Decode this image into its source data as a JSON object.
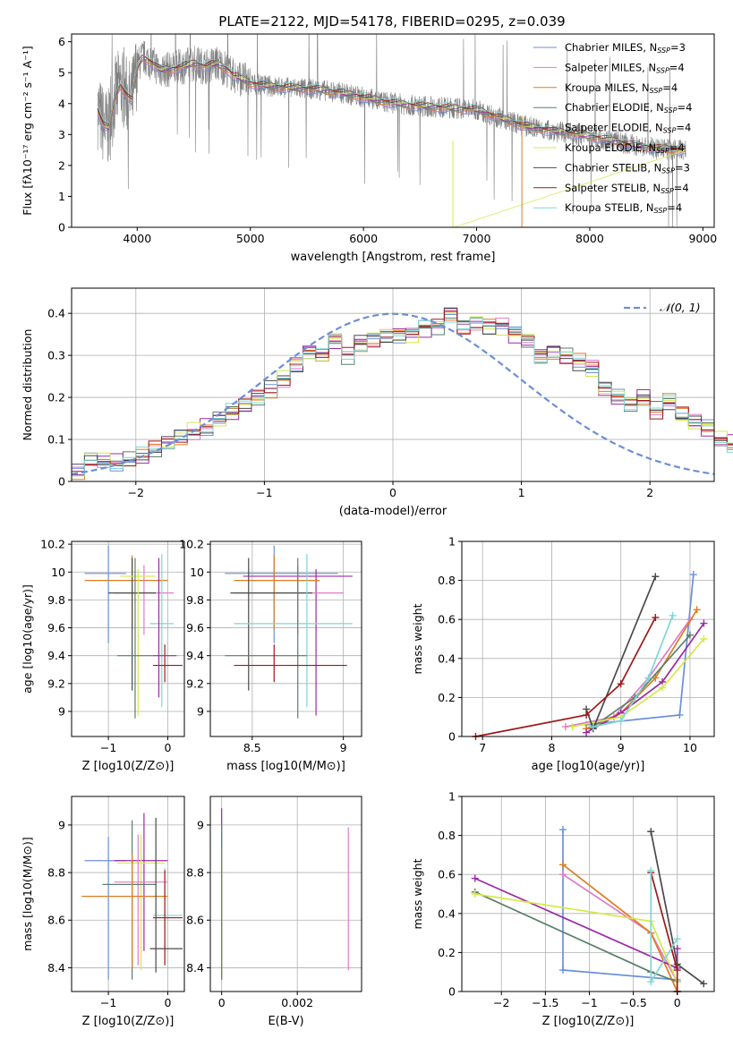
{
  "title": "PLATE=2122, MJD=54178, FIBERID=0295, z=0.039",
  "palette": {
    "Chabrier MILES": "#6b8fd6",
    "Salpeter MILES": "#e07cc8",
    "Kroupa MILES": "#e07b20",
    "Chabrier ELODIE": "#5a7f6a",
    "Salpeter ELODIE": "#9a2aa6",
    "Kroupa ELODIE": "#d6e84a",
    "Chabrier STELIB": "#4a4a4a",
    "Salpeter STELIB": "#a01818",
    "Kroupa STELIB": "#7fd6d6",
    "data": "#808080",
    "normal": "#6b8fd6"
  },
  "chart_data": [
    {
      "type": "line",
      "id": "spectrum",
      "title": "PLATE=2122, MJD=54178, FIBERID=0295, z=0.039",
      "xlabel": "wavelength [Angstrom, rest frame]",
      "ylabel": "Flux [fλ10⁻¹⁷ erg cm⁻² s⁻¹ A⁻¹]",
      "xlim": [
        3420,
        9100
      ],
      "ylim": [
        0,
        6.25
      ],
      "xticks": [
        4000,
        5000,
        6000,
        7000,
        8000,
        9000
      ],
      "yticks": [
        0,
        1,
        2,
        3,
        4,
        5,
        6
      ],
      "legend_position": "top-right",
      "model_curve": {
        "x": [
          3650,
          3700,
          3750,
          3800,
          3850,
          3900,
          3950,
          4000,
          4050,
          4100,
          4200,
          4300,
          4400,
          4500,
          4600,
          4700,
          4800,
          4850,
          4900,
          5000,
          5200,
          5400,
          5600,
          5800,
          6000,
          6200,
          6400,
          6600,
          6800,
          7000,
          7200,
          7400,
          7600,
          7800,
          8000,
          8200,
          8400,
          8600,
          8800
        ],
        "y": [
          3.8,
          3.3,
          3.2,
          4.2,
          4.6,
          4.3,
          4.1,
          5.2,
          5.5,
          5.4,
          5.1,
          5.1,
          5.2,
          5.3,
          5.2,
          5.3,
          5.1,
          4.9,
          4.85,
          4.65,
          4.55,
          4.5,
          4.45,
          4.35,
          4.2,
          4.05,
          3.95,
          3.9,
          3.85,
          3.8,
          3.55,
          3.3,
          3.15,
          3.05,
          2.95,
          2.8,
          2.65,
          2.55,
          2.5
        ]
      },
      "series": [
        {
          "name": "Chabrier MILES, N_SSP=3",
          "name_main": "Chabrier MILES, N",
          "name_sub": "SSP",
          "name_tail": "=3",
          "color": "#6b8fd6"
        },
        {
          "name": "Salpeter MILES, N_SSP=4",
          "name_main": "Salpeter MILES, N",
          "name_sub": "SSP",
          "name_tail": "=4",
          "color": "#e07cc8"
        },
        {
          "name": "Kroupa MILES, N_SSP=4",
          "name_main": "Kroupa MILES, N",
          "name_sub": "SSP",
          "name_tail": "=4",
          "color": "#e07b20"
        },
        {
          "name": "Chabrier ELODIE, N_SSP=4",
          "name_main": "Chabrier ELODIE, N",
          "name_sub": "SSP",
          "name_tail": "=4",
          "color": "#5a7f6a"
        },
        {
          "name": "Salpeter ELODIE, N_SSP=4",
          "name_main": "Salpeter ELODIE, N",
          "name_sub": "SSP",
          "name_tail": "=4",
          "color": "#9a2aa6"
        },
        {
          "name": "Kroupa ELODIE, N_SSP=4",
          "name_main": "Kroupa ELODIE, N",
          "name_sub": "SSP",
          "name_tail": "=4",
          "color": "#d6e84a"
        },
        {
          "name": "Chabrier STELIB, N_SSP=3",
          "name_main": "Chabrier STELIB, N",
          "name_sub": "SSP",
          "name_tail": "=3",
          "color": "#4a4a4a"
        },
        {
          "name": "Salpeter STELIB, N_SSP=4",
          "name_main": "Salpeter STELIB, N",
          "name_sub": "SSP",
          "name_tail": "=4",
          "color": "#a01818"
        },
        {
          "name": "Kroupa STELIB, N_SSP=4",
          "name_main": "Kroupa STELIB, N",
          "name_sub": "SSP",
          "name_tail": "=4",
          "color": "#7fd6d6"
        }
      ]
    },
    {
      "type": "histogram",
      "id": "residuals",
      "xlabel": "(data-model)/error",
      "ylabel": "Normed distribution",
      "xlim": [
        -2.5,
        2.5
      ],
      "ylim": [
        0,
        0.46
      ],
      "xticks": [
        -2,
        -1,
        0,
        1,
        2
      ],
      "yticks": [
        0.0,
        0.1,
        0.2,
        0.3,
        0.4
      ],
      "grid": true,
      "legend": "𝒩(0, 1)",
      "bin_edges_start": -2.5,
      "bin_width": 0.1,
      "base_values": [
        0.02,
        0.05,
        0.05,
        0.045,
        0.05,
        0.06,
        0.075,
        0.09,
        0.105,
        0.12,
        0.13,
        0.15,
        0.165,
        0.18,
        0.2,
        0.22,
        0.245,
        0.28,
        0.31,
        0.3,
        0.335,
        0.3,
        0.33,
        0.34,
        0.35,
        0.35,
        0.35,
        0.365,
        0.37,
        0.4,
        0.37,
        0.38,
        0.37,
        0.37,
        0.35,
        0.335,
        0.3,
        0.31,
        0.3,
        0.285,
        0.27,
        0.22,
        0.2,
        0.185,
        0.2,
        0.17,
        0.19,
        0.16,
        0.14,
        0.125,
        0.1,
        0.09,
        0.085,
        0.075,
        0.07,
        0.055,
        0.05,
        0.045,
        0.04,
        0.035
      ]
    },
    {
      "type": "errorbar",
      "id": "age_vs_Z",
      "xlabel": "Z [log10(Z/Z⊙)]",
      "ylabel": "age  [log10(age/yr)]",
      "xlim": [
        -1.62,
        0.28
      ],
      "ylim": [
        8.82,
        10.22
      ],
      "xticks": [
        -1,
        0
      ],
      "yticks": [
        9.0,
        9.2,
        9.4,
        9.6,
        9.8,
        10.0,
        10.2
      ],
      "points": [
        {
          "series": "Chabrier MILES",
          "x": -1.0,
          "xerr": [
            0.4,
            0.3
          ],
          "y": 9.99,
          "yerr": [
            0.5,
            0.2
          ]
        },
        {
          "series": "Kroupa MILES",
          "x": -0.6,
          "xerr": [
            0.8,
            0.6
          ],
          "y": 9.94,
          "yerr": [
            0.35,
            0.18
          ]
        },
        {
          "series": "Salpeter MILES",
          "x": -0.4,
          "xerr": [
            0.5,
            0.5
          ],
          "y": 9.85,
          "yerr": [
            0.3,
            0.2
          ]
        },
        {
          "series": "Chabrier STELIB",
          "x": -0.6,
          "xerr": [
            0.4,
            0.4
          ],
          "y": 9.85,
          "yerr": [
            0.7,
            0.25
          ]
        },
        {
          "series": "Kroupa ELODIE",
          "x": -0.5,
          "xerr": [
            0.3,
            0.3
          ],
          "y": 9.97,
          "yerr": [
            1.0,
            0.05
          ]
        },
        {
          "series": "Kroupa STELIB",
          "x": -0.1,
          "xerr": [
            0.2,
            0.2
          ],
          "y": 9.63,
          "yerr": [
            0.6,
            0.5
          ]
        },
        {
          "series": "Chabrier ELODIE",
          "x": -0.55,
          "xerr": [
            0.3,
            0.3
          ],
          "y": 9.4,
          "yerr": [
            0.45,
            0.7
          ]
        },
        {
          "series": "Salpeter STELIB",
          "x": -0.05,
          "xerr": [
            0.2,
            0.3
          ],
          "y": 9.33,
          "yerr": [
            0.12,
            0.15
          ]
        },
        {
          "series": "Salpeter ELODIE",
          "x": -0.15,
          "xerr": [
            0.1,
            0.3
          ],
          "y": 9.4,
          "yerr": [
            0.3,
            0.7
          ]
        }
      ]
    },
    {
      "type": "errorbar",
      "id": "age_vs_mass",
      "xlabel": "mass [log10(M/M⊙)]",
      "ylim": [
        8.82,
        10.22
      ],
      "xlim": [
        8.27,
        9.1
      ],
      "xticks": [
        8.5,
        9.0
      ],
      "yticks": [
        9.0,
        9.2,
        9.4,
        9.6,
        9.8,
        10.0,
        10.2
      ],
      "points": [
        {
          "series": "Chabrier MILES",
          "x": 8.62,
          "xerr": [
            0.27,
            0.35
          ],
          "y": 9.99,
          "yerr": [
            0.5,
            0.2
          ]
        },
        {
          "series": "Salpeter ELODIE",
          "x": 8.85,
          "xerr": [
            0.4,
            0.2
          ],
          "y": 9.97,
          "yerr": [
            1.0,
            0.05
          ]
        },
        {
          "series": "Kroupa MILES",
          "x": 8.62,
          "xerr": [
            0.22,
            0.25
          ],
          "y": 9.94,
          "yerr": [
            0.35,
            0.18
          ]
        },
        {
          "series": "Salpeter MILES",
          "x": 8.75,
          "xerr": [
            0.35,
            0.25
          ],
          "y": 9.85,
          "yerr": [
            0.3,
            0.2
          ]
        },
        {
          "series": "Chabrier STELIB",
          "x": 8.48,
          "xerr": [
            0.1,
            0.35
          ],
          "y": 9.85,
          "yerr": [
            0.7,
            0.25
          ]
        },
        {
          "series": "Kroupa STELIB",
          "x": 8.8,
          "xerr": [
            0.4,
            0.25
          ],
          "y": 9.63,
          "yerr": [
            0.6,
            0.5
          ]
        },
        {
          "series": "Chabrier ELODIE",
          "x": 8.75,
          "xerr": [
            0.4,
            0.05
          ],
          "y": 9.4,
          "yerr": [
            0.45,
            0.7
          ]
        },
        {
          "series": "Salpeter STELIB",
          "x": 8.62,
          "xerr": [
            0.22,
            0.4
          ],
          "y": 9.33,
          "yerr": [
            0.12,
            0.15
          ]
        }
      ]
    },
    {
      "type": "line",
      "id": "mass_weight_vs_age",
      "xlabel": "age  [log10(age/yr)]",
      "ylabel": "mass weight",
      "xlim": [
        6.7,
        10.35
      ],
      "ylim": [
        0,
        1.0
      ],
      "xticks": [
        7,
        8,
        9,
        10
      ],
      "yticks": [
        0.0,
        0.2,
        0.4,
        0.6,
        0.8,
        1.0
      ],
      "series": [
        {
          "name": "Chabrier MILES",
          "x": [
            8.5,
            9.85,
            10.05
          ],
          "y": [
            0.06,
            0.11,
            0.83
          ]
        },
        {
          "name": "Salpeter MILES",
          "x": [
            8.2,
            8.9,
            9.4,
            10.0
          ],
          "y": [
            0.05,
            0.1,
            0.3,
            0.6
          ]
        },
        {
          "name": "Kroupa MILES",
          "x": [
            8.5,
            9.0,
            9.5,
            10.1
          ],
          "y": [
            0.04,
            0.12,
            0.3,
            0.65
          ]
        },
        {
          "name": "Chabrier ELODIE",
          "x": [
            8.6,
            9.2,
            10.0
          ],
          "y": [
            0.05,
            0.2,
            0.52
          ]
        },
        {
          "name": "Salpeter ELODIE",
          "x": [
            8.5,
            9.0,
            9.6,
            10.2
          ],
          "y": [
            0.02,
            0.12,
            0.28,
            0.58
          ]
        },
        {
          "name": "Kroupa ELODIE",
          "x": [
            8.3,
            9.0,
            9.6,
            10.2
          ],
          "y": [
            0.05,
            0.1,
            0.25,
            0.5
          ]
        },
        {
          "name": "Chabrier STELIB",
          "x": [
            8.5,
            8.6,
            9.5
          ],
          "y": [
            0.14,
            0.04,
            0.82
          ]
        },
        {
          "name": "Salpeter STELIB",
          "x": [
            6.9,
            8.5,
            9.0,
            9.5
          ],
          "y": [
            0.0,
            0.11,
            0.27,
            0.61
          ]
        },
        {
          "name": "Kroupa STELIB",
          "x": [
            8.6,
            9.0,
            9.4,
            9.75
          ],
          "y": [
            0.05,
            0.08,
            0.3,
            0.62
          ]
        }
      ]
    },
    {
      "type": "errorbar",
      "id": "mass_vs_Z",
      "xlabel": "Z [log10(Z/Z⊙)]",
      "ylabel": "mass [log10(M/M⊙)]",
      "xlim": [
        -1.62,
        0.28
      ],
      "ylim": [
        8.3,
        9.12
      ],
      "xticks": [
        -1,
        0
      ],
      "yticks": [
        8.4,
        8.6,
        8.8,
        9.0
      ],
      "points": [
        {
          "series": "Chabrier MILES",
          "x": -1.0,
          "xerr": [
            0.4,
            0.3
          ],
          "y": 8.85,
          "yerr": [
            0.5,
            0.1
          ]
        },
        {
          "series": "Salpeter ELODIE",
          "x": -0.4,
          "xerr": [
            0.5,
            0.4
          ],
          "y": 8.85,
          "yerr": [
            0.38,
            0.2
          ]
        },
        {
          "series": "Kroupa ELODIE",
          "x": -0.45,
          "xerr": [
            0.4,
            0.4
          ],
          "y": 8.84,
          "yerr": [
            0.45,
            0.12
          ]
        },
        {
          "series": "Salpeter MILES",
          "x": -0.5,
          "xerr": [
            0.4,
            0.5
          ],
          "y": 8.76,
          "yerr": [
            0.35,
            0.2
          ]
        },
        {
          "series": "Chabrier ELODIE",
          "x": -0.6,
          "xerr": [
            0.5,
            0.4
          ],
          "y": 8.75,
          "yerr": [
            0.4,
            0.27
          ]
        },
        {
          "series": "Kroupa MILES",
          "x": -0.6,
          "xerr": [
            0.85,
            0.6
          ],
          "y": 8.7,
          "yerr": [
            0.3,
            0.18
          ]
        },
        {
          "series": "Kroupa STELIB",
          "x": -0.05,
          "xerr": [
            0.2,
            0.3
          ],
          "y": 8.62,
          "yerr": [
            0.2,
            0.2
          ]
        },
        {
          "series": "Salpeter STELIB",
          "x": -0.05,
          "xerr": [
            0.2,
            0.3
          ],
          "y": 8.61,
          "yerr": [
            0.2,
            0.2
          ]
        },
        {
          "series": "Chabrier STELIB",
          "x": -0.2,
          "xerr": [
            0.1,
            0.45
          ],
          "y": 8.48,
          "yerr": [
            0.1,
            0.55
          ]
        }
      ]
    },
    {
      "type": "errorbar",
      "id": "mass_vs_ebv",
      "xlabel": "E(B-V)",
      "xlim": [
        -0.0003,
        0.0037
      ],
      "ylim": [
        8.3,
        9.12
      ],
      "xticks": [
        0.0,
        0.002
      ],
      "yticks": [
        8.4,
        8.6,
        8.8,
        9.0
      ],
      "points": [
        {
          "series": "Salpeter ELODIE",
          "x": 0.0,
          "y": 8.85,
          "yerr": [
            0.4,
            0.22
          ]
        },
        {
          "series": "Chabrier MILES",
          "x": 0.0,
          "y": 8.85,
          "yerr": [
            0.5,
            0.15
          ]
        },
        {
          "series": "Kroupa STELIB",
          "x": 0.0,
          "y": 8.7,
          "yerr": [
            0.3,
            0.3
          ]
        },
        {
          "series": "Kroupa ELODIE",
          "x": 0.0,
          "y": 8.7,
          "yerr": [
            0.35,
            0.2
          ]
        },
        {
          "series": "Chabrier ELODIE",
          "x": 0.0,
          "y": 8.75,
          "yerr": [
            0.4,
            0.25
          ]
        },
        {
          "series": "Salpeter MILES",
          "x": 0.00335,
          "y": 8.69,
          "yerr": [
            0.3,
            0.3
          ]
        }
      ]
    },
    {
      "type": "line",
      "id": "mass_weight_vs_Z",
      "xlabel": "Z [log10(Z/Z⊙)]",
      "ylabel": "mass weight",
      "xlim": [
        -2.45,
        0.42
      ],
      "ylim": [
        0,
        1.0
      ],
      "xticks": [
        -2.0,
        -1.5,
        -1.0,
        -0.5,
        0.0
      ],
      "yticks": [
        0.0,
        0.2,
        0.4,
        0.6,
        0.8,
        1.0
      ],
      "series": [
        {
          "name": "Chabrier MILES",
          "x": [
            -1.3,
            -1.3,
            0.0,
            0.0
          ],
          "y": [
            0.83,
            0.11,
            0.06,
            0.0
          ]
        },
        {
          "name": "Salpeter MILES",
          "x": [
            -1.3,
            -0.3,
            0.0
          ],
          "y": [
            0.6,
            0.3,
            0.05
          ]
        },
        {
          "name": "Kroupa MILES",
          "x": [
            -1.3,
            -0.3,
            0.0
          ],
          "y": [
            0.65,
            0.3,
            0.0
          ]
        },
        {
          "name": "Chabrier ELODIE",
          "x": [
            -2.3,
            -0.3,
            0.0
          ],
          "y": [
            0.51,
            0.1,
            0.05
          ]
        },
        {
          "name": "Salpeter ELODIE",
          "x": [
            -2.3,
            0.0,
            0.0
          ],
          "y": [
            0.58,
            0.12,
            0.22
          ]
        },
        {
          "name": "Kroupa ELODIE",
          "x": [
            -2.3,
            -0.3,
            0.0
          ],
          "y": [
            0.5,
            0.36,
            0.05
          ]
        },
        {
          "name": "Chabrier STELIB",
          "x": [
            -0.3,
            0.0,
            0.3
          ],
          "y": [
            0.82,
            0.14,
            0.04
          ]
        },
        {
          "name": "Salpeter STELIB",
          "x": [
            -0.3,
            0.0,
            0.0
          ],
          "y": [
            0.61,
            0.11,
            0.0
          ]
        },
        {
          "name": "Kroupa STELIB",
          "x": [
            -0.3,
            -0.3,
            0.0
          ],
          "y": [
            0.62,
            0.05,
            0.27
          ]
        }
      ]
    }
  ]
}
